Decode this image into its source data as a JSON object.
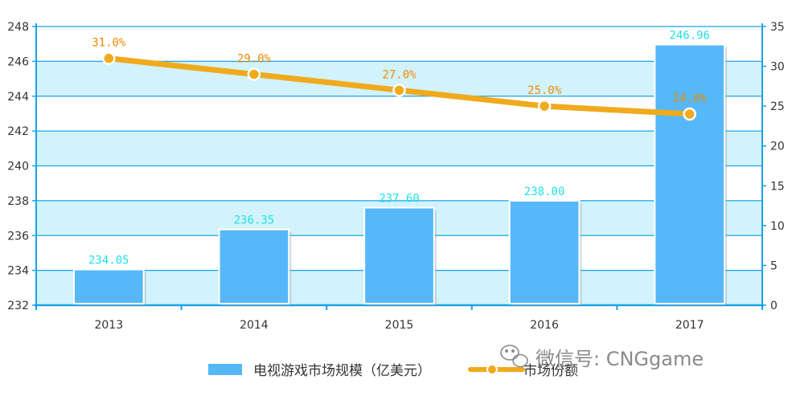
{
  "chart_data": {
    "type": "bar",
    "categories": [
      "2013",
      "2014",
      "2015",
      "2016",
      "2017"
    ],
    "series": [
      {
        "name": "电视游戏市场规模（亿美元）",
        "kind": "bar",
        "axis": "left",
        "values": [
          234.05,
          236.35,
          237.6,
          238.0,
          246.96
        ],
        "labels": [
          "234.05",
          "236.35",
          "237.60",
          "238.00",
          "246.96"
        ],
        "color": "#56b8f8"
      },
      {
        "name": "市场份额",
        "kind": "line",
        "axis": "right",
        "values": [
          31.0,
          29.0,
          27.0,
          25.0,
          24.0
        ],
        "labels": [
          "31.0%",
          "29.0%",
          "27.0%",
          "25.0%",
          "24.0%"
        ],
        "color": "#f0aa1c"
      }
    ],
    "y_left": {
      "range": [
        232,
        248
      ],
      "ticks": [
        "232",
        "234",
        "236",
        "238",
        "240",
        "242",
        "244",
        "246",
        "248"
      ]
    },
    "y_right": {
      "range": [
        0,
        35
      ],
      "ticks": [
        "0",
        "5",
        "10",
        "15",
        "20",
        "25",
        "30",
        "35"
      ]
    },
    "grid": true,
    "band_color": "#d2f3fc",
    "axis_color": "#1aa3e8",
    "legend_position": "bottom"
  },
  "watermark": {
    "text": "微信号: CNGgame",
    "icon": "wechat-icon"
  }
}
